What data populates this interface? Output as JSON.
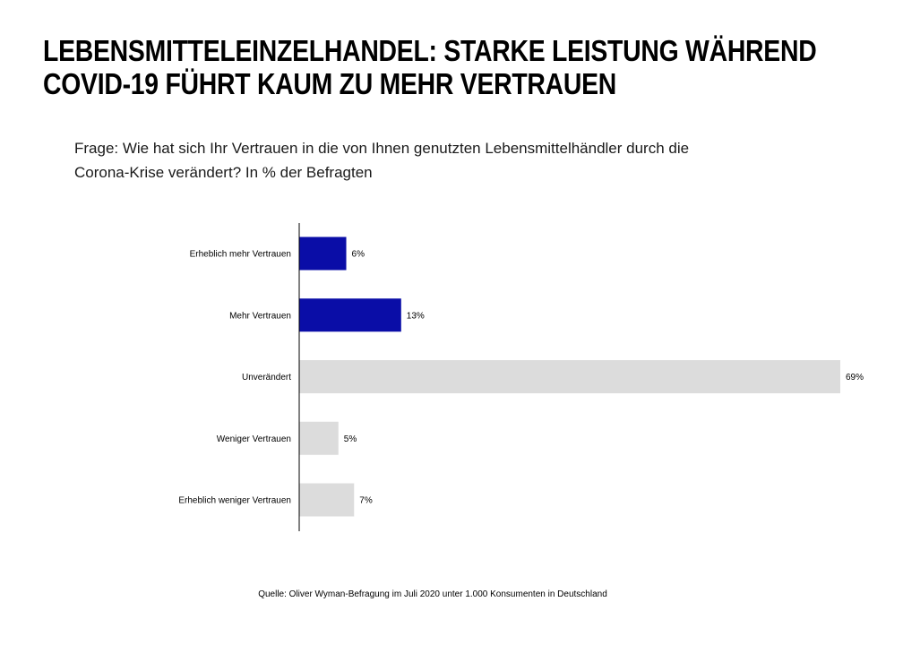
{
  "header": {
    "title_lines": [
      "LEBENSMITTELEINZELHANDEL: STARKE LEISTUNG WÄHREND",
      "COVID-19 FÜHRT KAUM ZU MEHR VERTRAUEN"
    ],
    "subtitle_lines": [
      "Frage: Wie hat sich Ihr Vertrauen in die von Ihnen genutzten Lebensmittelhändler durch die",
      "Corona-Krise verändert? In % der Befragten"
    ]
  },
  "footer": {
    "source": "Quelle: Oliver Wyman-Befragung im Juli 2020 unter 1.000 Konsumenten in Deutschland"
  },
  "colors": {
    "highlight": "#0A0DA7",
    "neutral": "#DCDCDC",
    "axis": "#000000"
  },
  "chart_data": {
    "type": "bar",
    "orientation": "horizontal",
    "categories": [
      "Erheblich mehr Vertrauen",
      "Mehr Vertrauen",
      "Unverändert",
      "Weniger Vertrauen",
      "Erheblich weniger Vertrauen"
    ],
    "values": [
      6,
      13,
      69,
      5,
      7
    ],
    "value_labels": [
      "6%",
      "13%",
      "69%",
      "5%",
      "7%"
    ],
    "bar_colors": [
      "#0A0DA7",
      "#0A0DA7",
      "#DCDCDC",
      "#DCDCDC",
      "#DCDCDC"
    ],
    "xlim": [
      0,
      69
    ],
    "grid": false,
    "legend": "none"
  }
}
